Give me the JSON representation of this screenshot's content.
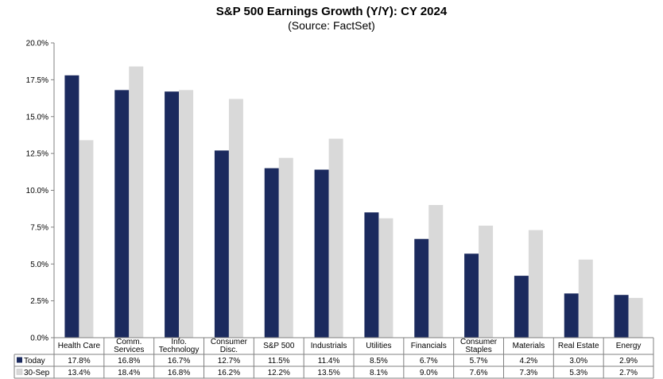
{
  "chart_data": {
    "type": "bar",
    "title": "S&P 500 Earnings Growth (Y/Y): CY 2024",
    "subtitle": "(Source: FactSet)",
    "categories": [
      [
        "Health Care"
      ],
      [
        "Comm.",
        "Services"
      ],
      [
        "Info.",
        "Technology"
      ],
      [
        "Consumer",
        "Disc."
      ],
      [
        "S&P 500"
      ],
      [
        "Industrials"
      ],
      [
        "Utilities"
      ],
      [
        "Financials"
      ],
      [
        "Consumer",
        "Staples"
      ],
      [
        "Materials"
      ],
      [
        "Real Estate"
      ],
      [
        "Energy"
      ]
    ],
    "series": [
      {
        "name": "Today",
        "color": "#1b2a5e",
        "values": [
          17.8,
          16.8,
          16.7,
          12.7,
          11.5,
          11.4,
          8.5,
          6.7,
          5.7,
          4.2,
          3.0,
          2.9
        ],
        "labels": [
          "17.8%",
          "16.8%",
          "16.7%",
          "12.7%",
          "11.5%",
          "11.4%",
          "8.5%",
          "6.7%",
          "5.7%",
          "4.2%",
          "3.0%",
          "2.9%"
        ]
      },
      {
        "name": "30-Sep",
        "color": "#d9d9d9",
        "values": [
          13.4,
          18.4,
          16.8,
          16.2,
          12.2,
          13.5,
          8.1,
          9.0,
          7.6,
          7.3,
          5.3,
          2.7
        ],
        "labels": [
          "13.4%",
          "18.4%",
          "16.8%",
          "16.2%",
          "12.2%",
          "13.5%",
          "8.1%",
          "9.0%",
          "7.6%",
          "7.3%",
          "5.3%",
          "2.7%"
        ]
      }
    ],
    "ylim": [
      0,
      20
    ],
    "yticks": [
      "0.0%",
      "2.5%",
      "5.0%",
      "7.5%",
      "10.0%",
      "12.5%",
      "15.0%",
      "17.5%",
      "20.0%"
    ],
    "grid": false,
    "legend": "data-table"
  }
}
